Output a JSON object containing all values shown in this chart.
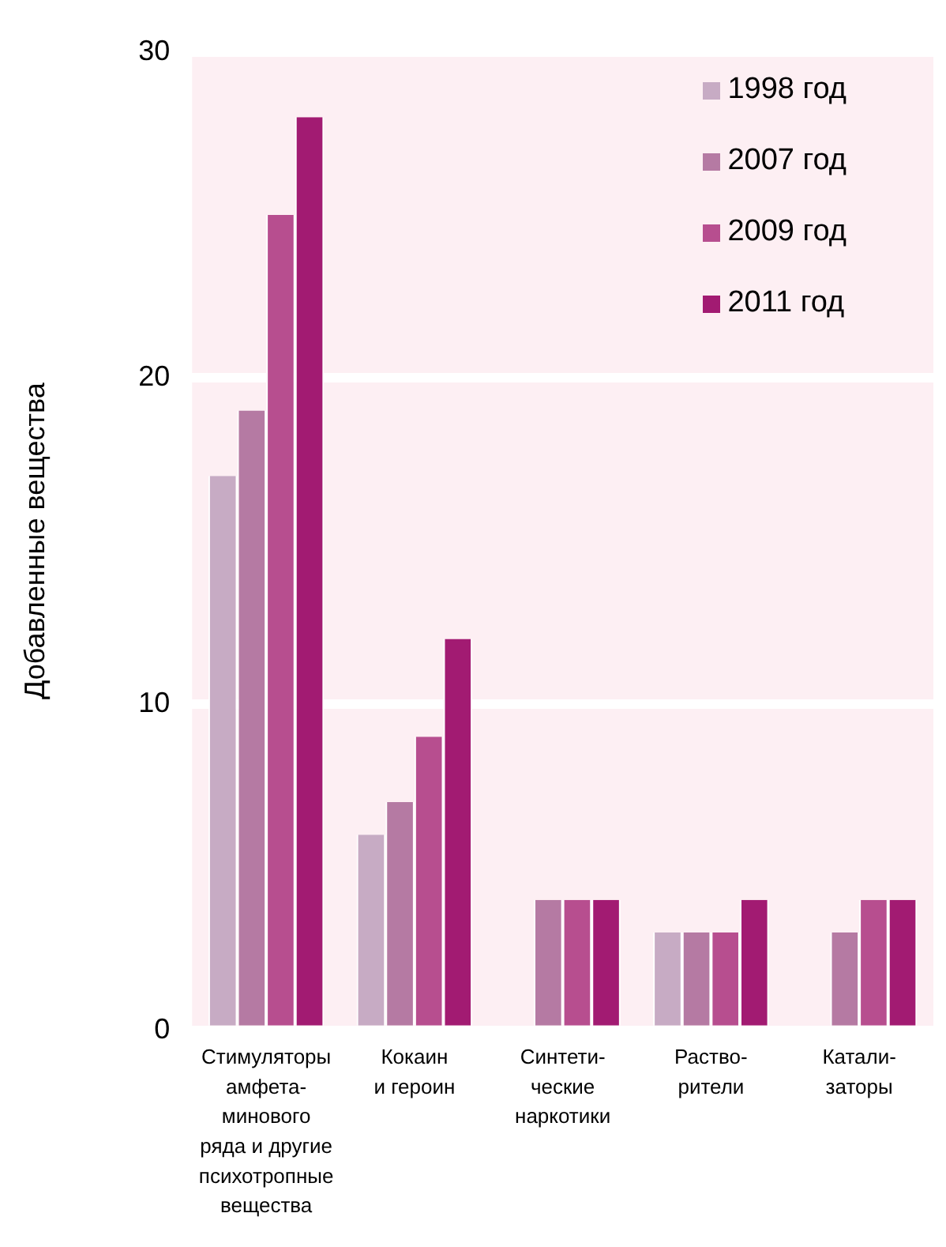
{
  "chart_data": {
    "type": "bar",
    "ylabel": "Добавленные вещества",
    "categories": [
      "Стимуляторы\nамфета-\nминового\nряда и другие\nпсихотропные\nвещества",
      "Кокаин\nи героин",
      "Синтети-\nческие\nнаркотики",
      "Раство-\nрители",
      "Катали-\nзаторы"
    ],
    "series": [
      {
        "name": "1998 год",
        "color": "#c7abc4",
        "values": [
          17,
          6,
          null,
          3,
          null
        ]
      },
      {
        "name": "2007 год",
        "color": "#b57aa3",
        "values": [
          19,
          7,
          4,
          3,
          3
        ]
      },
      {
        "name": "2009 год",
        "color": "#b74e8f",
        "values": [
          25,
          9,
          4,
          3,
          4
        ]
      },
      {
        "name": "2011 год",
        "color": "#a21b72",
        "values": [
          28,
          12,
          4,
          4,
          4
        ]
      }
    ],
    "ylim": [
      0,
      30
    ],
    "yticks": [
      0,
      10,
      20,
      30
    ],
    "grid": "y",
    "legend": "top right"
  }
}
